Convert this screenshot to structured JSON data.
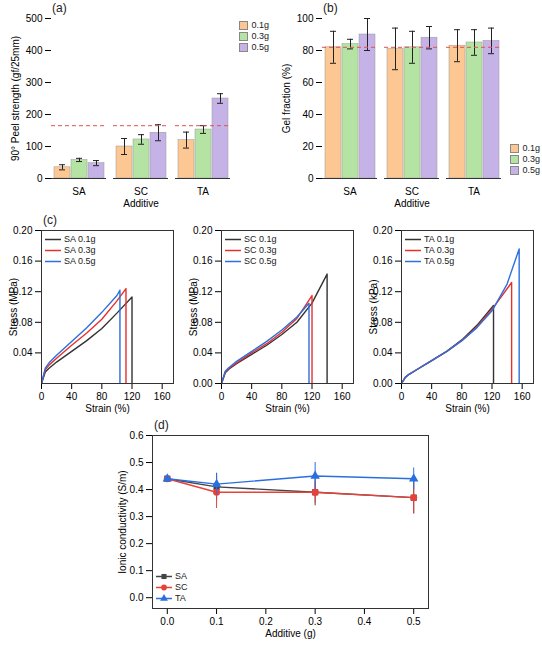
{
  "chart_data": [
    {
      "type": "bar",
      "title": "(a)",
      "x_label": "Additive",
      "y_label": "90° Peel strength (gf/25mm)",
      "categories": [
        "SA",
        "SC",
        "TA"
      ],
      "series": [
        {
          "name": "0.1g",
          "color": "#fcc792",
          "values": [
            35,
            100,
            120
          ],
          "errors": [
            8,
            25,
            25
          ]
        },
        {
          "name": "0.3g",
          "color": "#b5e3a3",
          "values": [
            58,
            122,
            153
          ],
          "errors": [
            5,
            15,
            12
          ]
        },
        {
          "name": "0.5g",
          "color": "#c5b2e6",
          "values": [
            48,
            143,
            250
          ],
          "errors": [
            8,
            25,
            15
          ]
        }
      ],
      "ylim": [
        0,
        500
      ],
      "yticks": [
        0,
        100,
        200,
        300,
        400,
        500
      ],
      "reference_line": 165,
      "legend": "top-right"
    },
    {
      "type": "bar",
      "title": "(b)",
      "x_label": "Additive",
      "y_label": "Gel fraction (%)",
      "categories": [
        "SA",
        "SC",
        "TA"
      ],
      "series": [
        {
          "name": "0.1g",
          "color": "#fcc792",
          "values": [
            82,
            81,
            83
          ],
          "errors": [
            10,
            13,
            10
          ]
        },
        {
          "name": "0.3g",
          "color": "#b5e3a3",
          "values": [
            84,
            82,
            85
          ],
          "errors": [
            3,
            10,
            8
          ]
        },
        {
          "name": "0.5g",
          "color": "#c5b2e6",
          "values": [
            90,
            88,
            86
          ],
          "errors": [
            10,
            7,
            8
          ]
        }
      ],
      "ylim": [
        0,
        100
      ],
      "yticks": [
        0,
        20,
        40,
        60,
        80,
        100
      ],
      "reference_line": 82,
      "legend": "bottom-right"
    },
    {
      "type": "line",
      "title": "(c)",
      "x_label": "Strain (%)",
      "y_label": "Stress (MPa)",
      "xlim": [
        0,
        175
      ],
      "xticks": [
        0,
        40,
        80,
        120,
        160
      ],
      "ylim": [
        0,
        0.2
      ],
      "yticks": [
        0.04,
        0.08,
        0.12,
        0.16,
        {
          "value": 0.2,
          "label": "0.20"
        }
      ],
      "legend": "top-left",
      "series": [
        {
          "name": "SA 0.1g",
          "color": "#333333",
          "x": [
            0,
            5,
            10,
            20,
            40,
            60,
            80,
            100,
            120,
            120
          ],
          "values": [
            0,
            0.015,
            0.02,
            0.028,
            0.042,
            0.056,
            0.072,
            0.092,
            0.113,
            0
          ]
        },
        {
          "name": "SA 0.3g",
          "color": "#e8302a",
          "x": [
            0,
            5,
            10,
            20,
            40,
            60,
            80,
            100,
            112,
            112
          ],
          "values": [
            0,
            0.018,
            0.024,
            0.033,
            0.05,
            0.066,
            0.084,
            0.108,
            0.124,
            0
          ]
        },
        {
          "name": "SA 0.5g",
          "color": "#2c6fde",
          "x": [
            0,
            5,
            10,
            20,
            40,
            60,
            80,
            100,
            104,
            104
          ],
          "values": [
            0,
            0.02,
            0.027,
            0.037,
            0.055,
            0.073,
            0.093,
            0.115,
            0.122,
            0
          ]
        }
      ]
    },
    {
      "type": "line",
      "x_label": "Strain (%)",
      "y_label": "Stress (MPa)",
      "xlim": [
        0,
        175
      ],
      "xticks": [
        0,
        40,
        80,
        120,
        160
      ],
      "ylim": [
        0,
        0.2
      ],
      "yticks": [
        {
          "value": 0,
          "label": "0.00"
        },
        0.04,
        0.08,
        0.12,
        0.16,
        {
          "value": 0.2,
          "label": "0.20"
        }
      ],
      "legend": "top-left",
      "series": [
        {
          "name": "SC 0.1g",
          "color": "#333333",
          "x": [
            0,
            5,
            10,
            20,
            40,
            60,
            80,
            100,
            120,
            140,
            140
          ],
          "values": [
            0,
            0.014,
            0.019,
            0.026,
            0.038,
            0.05,
            0.064,
            0.08,
            0.105,
            0.143,
            0
          ]
        },
        {
          "name": "SC 0.3g",
          "color": "#e8302a",
          "x": [
            0,
            5,
            10,
            20,
            40,
            60,
            80,
            100,
            120,
            120
          ],
          "values": [
            0,
            0.015,
            0.02,
            0.027,
            0.04,
            0.052,
            0.067,
            0.085,
            0.115,
            0
          ]
        },
        {
          "name": "SC 0.5g",
          "color": "#2c6fde",
          "x": [
            0,
            5,
            10,
            20,
            40,
            60,
            80,
            100,
            116,
            116
          ],
          "values": [
            0,
            0.016,
            0.021,
            0.029,
            0.042,
            0.055,
            0.07,
            0.087,
            0.105,
            0
          ]
        }
      ]
    },
    {
      "type": "line",
      "x_label": "Strain (%)",
      "y_label": "Stress (kPa)",
      "xlim": [
        0,
        175
      ],
      "xticks": [
        0,
        40,
        80,
        120,
        160
      ],
      "ylim": [
        0,
        0.2
      ],
      "yticks": [
        {
          "value": 0,
          "label": "0.00"
        },
        0.04,
        0.08,
        0.12,
        0.16,
        {
          "value": 0.2,
          "label": "0.20"
        }
      ],
      "legend": "top-left",
      "series": [
        {
          "name": "TA 0.1g",
          "color": "#333333",
          "x": [
            0,
            5,
            10,
            20,
            40,
            60,
            80,
            100,
            122,
            122
          ],
          "values": [
            0,
            0.008,
            0.012,
            0.018,
            0.03,
            0.042,
            0.057,
            0.076,
            0.102,
            0
          ]
        },
        {
          "name": "TA 0.3g",
          "color": "#e8302a",
          "x": [
            0,
            5,
            10,
            20,
            40,
            60,
            80,
            100,
            120,
            146,
            146
          ],
          "values": [
            0,
            0.008,
            0.012,
            0.018,
            0.03,
            0.042,
            0.056,
            0.074,
            0.097,
            0.132,
            0
          ]
        },
        {
          "name": "TA 0.5g",
          "color": "#2c6fde",
          "x": [
            0,
            5,
            10,
            20,
            40,
            60,
            80,
            100,
            120,
            140,
            156,
            156
          ],
          "values": [
            0,
            0.008,
            0.012,
            0.018,
            0.03,
            0.042,
            0.056,
            0.073,
            0.095,
            0.13,
            0.176,
            0
          ]
        }
      ]
    },
    {
      "type": "line",
      "title": "(d)",
      "x_label": "Additive (g)",
      "y_label": "Ionic conductivity (S/m)",
      "x": [
        0,
        0.1,
        0.3,
        0.5
      ],
      "xlim": [
        -0.03,
        0.53
      ],
      "xticks": [
        {
          "value": 0,
          "label": "0.0"
        },
        0.1,
        0.2,
        0.3,
        0.4,
        0.5
      ],
      "ylim": [
        -0.04,
        0.6
      ],
      "yticks": [
        {
          "value": 0,
          "label": "0.0"
        },
        0.1,
        0.2,
        0.3,
        0.4,
        0.5,
        0.6
      ],
      "legend": "bottom-left",
      "series": [
        {
          "name": "SA",
          "color": "#444444",
          "marker": "square",
          "values": [
            0.44,
            0.41,
            0.39,
            0.37
          ],
          "errors": [
            0.01,
            0.05,
            0.05,
            0.06
          ]
        },
        {
          "name": "SC",
          "color": "#e8413a",
          "marker": "circle",
          "values": [
            0.44,
            0.39,
            0.39,
            0.37
          ],
          "errors": [
            0.01,
            0.06,
            0.04,
            0.06
          ]
        },
        {
          "name": "TA",
          "color": "#2a6fe0",
          "marker": "triangle",
          "values": [
            0.44,
            0.42,
            0.45,
            0.44
          ],
          "errors": [
            0.01,
            0.04,
            0.05,
            0.04
          ]
        }
      ]
    }
  ]
}
